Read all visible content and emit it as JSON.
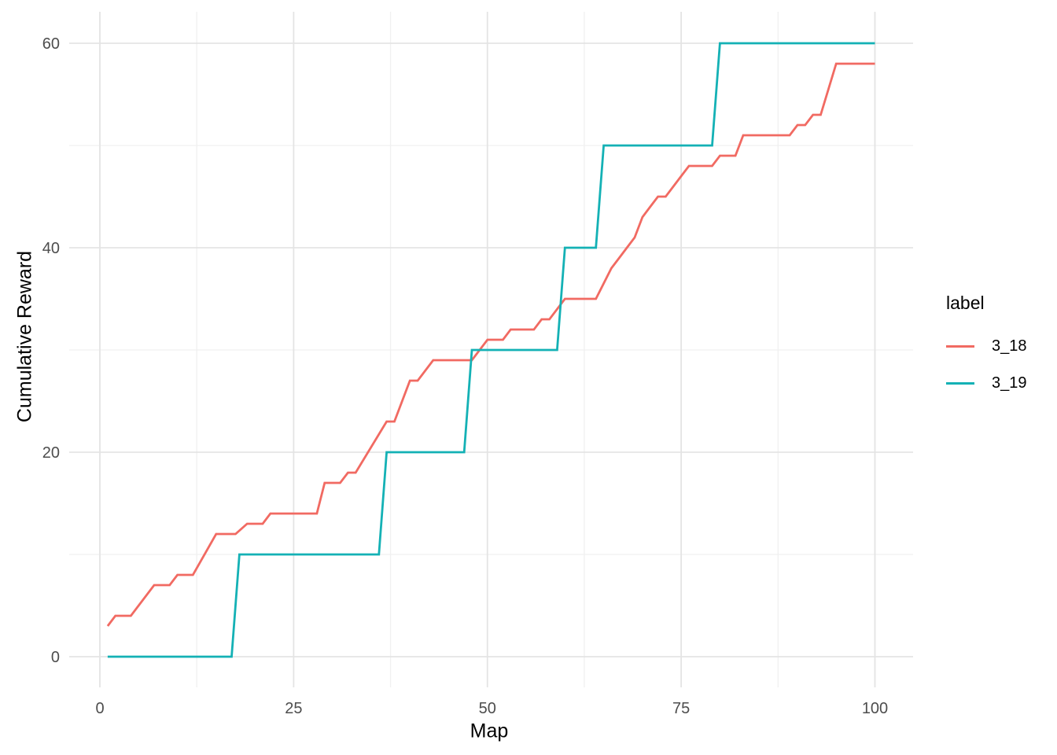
{
  "chart_data": {
    "type": "line",
    "title": "",
    "xlabel": "Map",
    "ylabel": "Cumulative Reward",
    "legend_title": "label",
    "legend_position": "right",
    "xlim": [
      -4,
      105
    ],
    "ylim": [
      -3,
      63
    ],
    "x_ticks": [
      0,
      25,
      50,
      75,
      100
    ],
    "x_minor_ticks": [
      12.5,
      37.5,
      62.5,
      87.5
    ],
    "y_ticks": [
      0,
      20,
      40,
      60
    ],
    "y_minor_ticks": [
      10,
      30,
      50
    ],
    "grid": "major+minor",
    "colors": {
      "grid_major": "#E4E4E4",
      "grid_minor": "#F0F0F0",
      "tick_label": "#4D4D4D",
      "axis_title": "#000000",
      "background": "#FFFFFF"
    },
    "series": [
      {
        "name": "3_18",
        "color": "#F16A62",
        "points": [
          [
            1,
            3
          ],
          [
            2,
            4
          ],
          [
            4,
            4
          ],
          [
            7,
            7
          ],
          [
            9,
            7
          ],
          [
            10,
            8
          ],
          [
            12,
            8
          ],
          [
            15,
            12
          ],
          [
            17.5,
            12
          ],
          [
            19,
            13
          ],
          [
            21,
            13
          ],
          [
            22,
            14
          ],
          [
            28,
            14
          ],
          [
            29,
            17
          ],
          [
            31,
            17
          ],
          [
            32,
            18
          ],
          [
            33,
            18
          ],
          [
            37,
            23
          ],
          [
            38,
            23
          ],
          [
            40,
            27
          ],
          [
            41,
            27
          ],
          [
            43,
            29
          ],
          [
            48,
            29
          ],
          [
            50,
            31
          ],
          [
            52,
            31
          ],
          [
            53,
            32
          ],
          [
            56,
            32
          ],
          [
            57,
            33
          ],
          [
            58,
            33
          ],
          [
            60,
            35
          ],
          [
            64,
            35
          ],
          [
            66,
            38
          ],
          [
            67,
            39
          ],
          [
            68,
            40
          ],
          [
            69,
            41
          ],
          [
            70,
            43
          ],
          [
            71,
            44
          ],
          [
            72,
            45
          ],
          [
            73,
            45
          ],
          [
            75,
            47
          ],
          [
            76,
            48
          ],
          [
            79,
            48
          ],
          [
            80,
            49
          ],
          [
            82,
            49
          ],
          [
            83,
            51
          ],
          [
            89,
            51
          ],
          [
            90,
            52
          ],
          [
            91,
            52
          ],
          [
            92,
            53
          ],
          [
            93,
            53
          ],
          [
            95,
            58
          ],
          [
            100,
            58
          ]
        ]
      },
      {
        "name": "3_19",
        "color": "#14B1B5",
        "points": [
          [
            1,
            0
          ],
          [
            17,
            0
          ],
          [
            18,
            10
          ],
          [
            36,
            10
          ],
          [
            37,
            20
          ],
          [
            47,
            20
          ],
          [
            48,
            30
          ],
          [
            59,
            30
          ],
          [
            60,
            40
          ],
          [
            64,
            40
          ],
          [
            65,
            50
          ],
          [
            79,
            50
          ],
          [
            80,
            60
          ],
          [
            100,
            60
          ]
        ]
      }
    ]
  }
}
